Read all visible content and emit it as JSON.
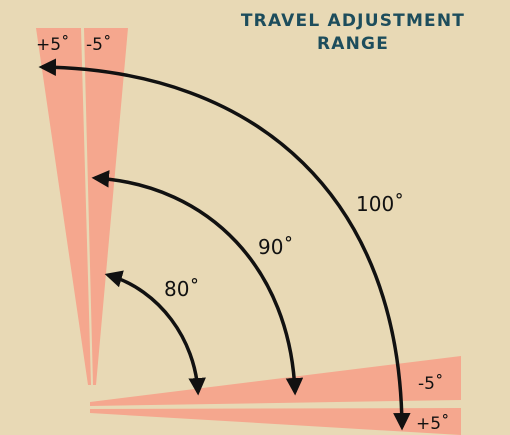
{
  "title": {
    "line1": "TRAVEL ADJUSTMENT",
    "line2": "RANGE"
  },
  "tolerance_labels": {
    "vertical_positive": "+5˚",
    "vertical_negative": "-5˚",
    "horizontal_negative": "-5˚",
    "horizontal_positive": "+5˚"
  },
  "arc_labels": {
    "small": "80˚",
    "medium": "90˚",
    "large": "100˚"
  },
  "colors": {
    "background": "#e8d9b5",
    "wedge": "#f5a78e",
    "title": "#1d4d5c",
    "arrow": "#111111"
  }
}
